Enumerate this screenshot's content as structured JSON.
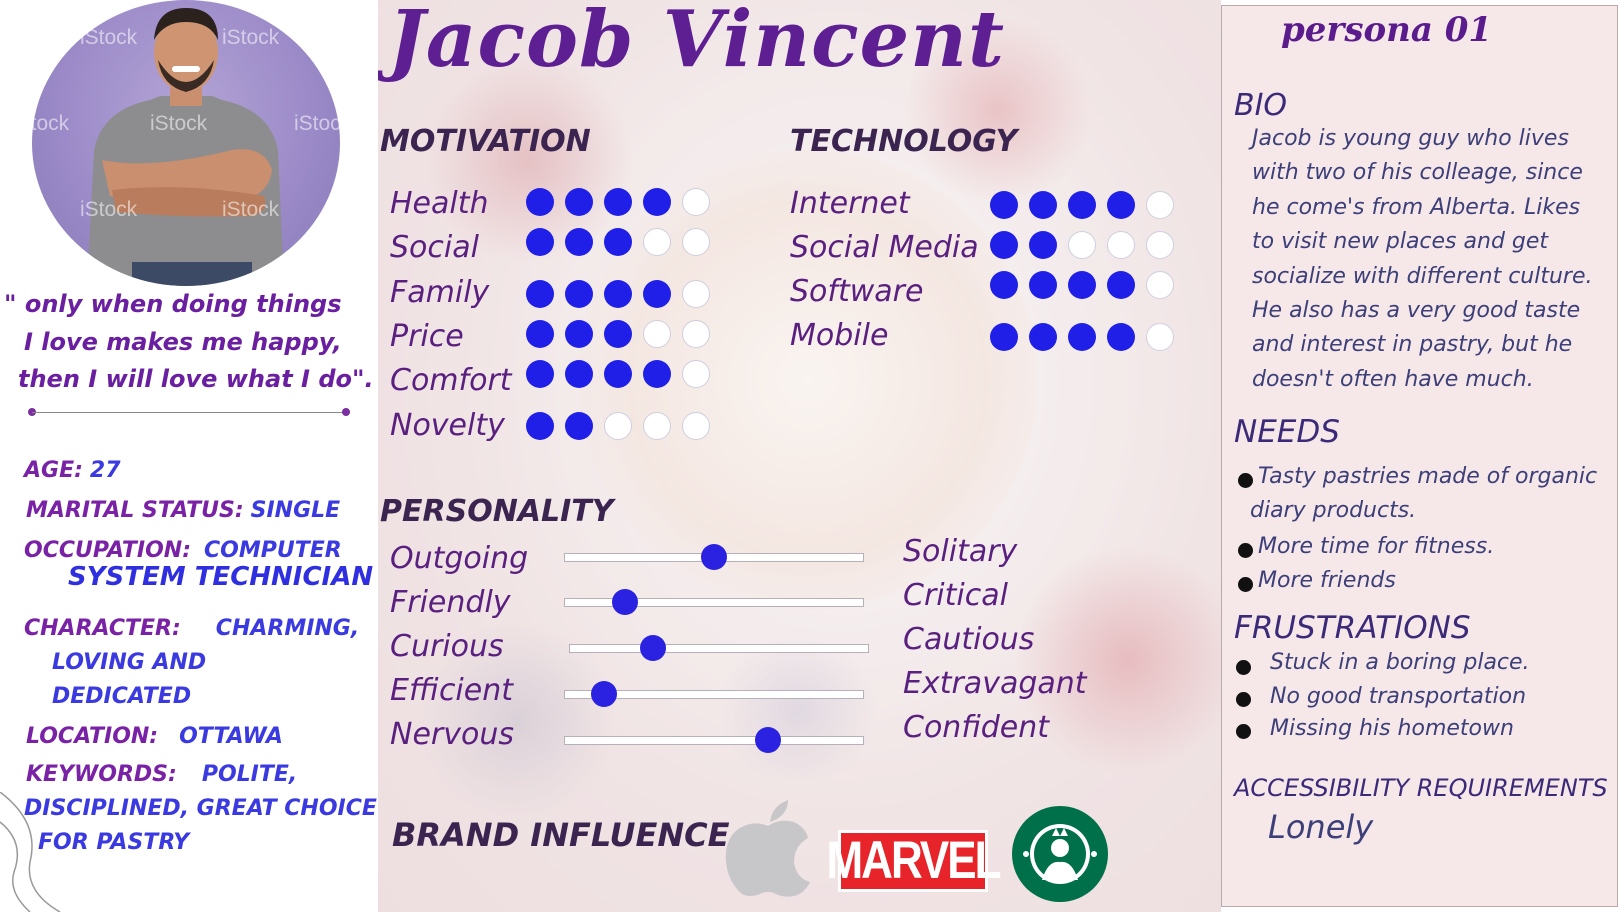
{
  "profile": {
    "name": "Jacob Vincent",
    "photo_watermark": "iStock",
    "quote_lines": [
      "\" only when  doing things",
      "I  love makes me happy,",
      "then I will love what I do\"."
    ],
    "age_label": "AGE:",
    "age_value": "27",
    "marital_label": "MARITAL STATUS:",
    "marital_value": "SINGLE",
    "occupation_label": "OCCUPATION:",
    "occupation_value_1": "COMPUTER",
    "occupation_value_2": "SYSTEM TECHNICIAN",
    "character_label": "CHARACTER:",
    "character_value_1": "CHARMING,",
    "character_value_2": "LOVING AND",
    "character_value_3": "DEDICATED",
    "location_label": "LOCATION:",
    "location_value": "OTTAWA",
    "keywords_label": "KEYWORDS:",
    "keywords_value_1": "POLITE,",
    "keywords_value_2": "DISCIPLINED, GREAT CHOICE",
    "keywords_value_3": "FOR PASTRY"
  },
  "motivation": {
    "title": "MOTIVATION",
    "items": [
      {
        "label": "Health",
        "rating": 4,
        "max": 5
      },
      {
        "label": "Social",
        "rating": 3,
        "max": 5
      },
      {
        "label": "Family",
        "rating": 4,
        "max": 5
      },
      {
        "label": "Price",
        "rating": 3,
        "max": 5
      },
      {
        "label": "Comfort",
        "rating": 4,
        "max": 5
      },
      {
        "label": "Novelty",
        "rating": 2,
        "max": 5
      }
    ]
  },
  "technology": {
    "title": "TECHNOLOGY",
    "items": [
      {
        "label": "Internet",
        "rating": 4,
        "max": 5
      },
      {
        "label": "Social Media",
        "rating": 2,
        "max": 5
      },
      {
        "label": "Software",
        "rating": 4,
        "max": 5
      },
      {
        "label": "Mobile",
        "rating": 4,
        "max": 5
      }
    ]
  },
  "personality": {
    "title": "PERSONALITY",
    "items": [
      {
        "left": "Outgoing",
        "right": "Solitary",
        "value": 0.5
      },
      {
        "left": "Friendly",
        "right": "Critical",
        "value": 0.2
      },
      {
        "left": "Curious",
        "right": "Cautious",
        "value": 0.28
      },
      {
        "left": "Efficient",
        "right": "Extravagant",
        "value": 0.13
      },
      {
        "left": "Nervous",
        "right": "Confident",
        "value": 0.68
      }
    ]
  },
  "brands": {
    "title": "BRAND INFLUENCE",
    "items": [
      "apple-logo",
      "marvel-logo",
      "starbucks-logo"
    ],
    "marvel_text": "MARVEL"
  },
  "right_panel": {
    "persona_label": "persona 01",
    "bio_title": "BIO",
    "bio_lines": [
      "Jacob is young guy who lives",
      "with two of his colleage, since",
      "he come's from Alberta. Likes",
      "to visit new places and get",
      "socialize with different culture.",
      "He also has a very good taste",
      "and interest in pastry,  but he",
      "doesn't often have much."
    ],
    "needs_title": "NEEDS",
    "needs": [
      "Tasty pastries made of organic",
      "diary products.",
      "More time for fitness.",
      "More friends"
    ],
    "frustrations_title": "FRUSTRATIONS",
    "frustrations": [
      "Stuck in a boring place.",
      "No good transportation",
      "Missing his hometown"
    ],
    "accessibility_title": "ACCESSIBILITY REQUIREMENTS",
    "accessibility_value": "Lonely"
  },
  "colors": {
    "primary_purple": "#5e1f92",
    "dot_blue": "#1f1fe8",
    "value_blue": "#3a3ae0",
    "marvel_red": "#e62429",
    "starbucks_green": "#00704a"
  }
}
